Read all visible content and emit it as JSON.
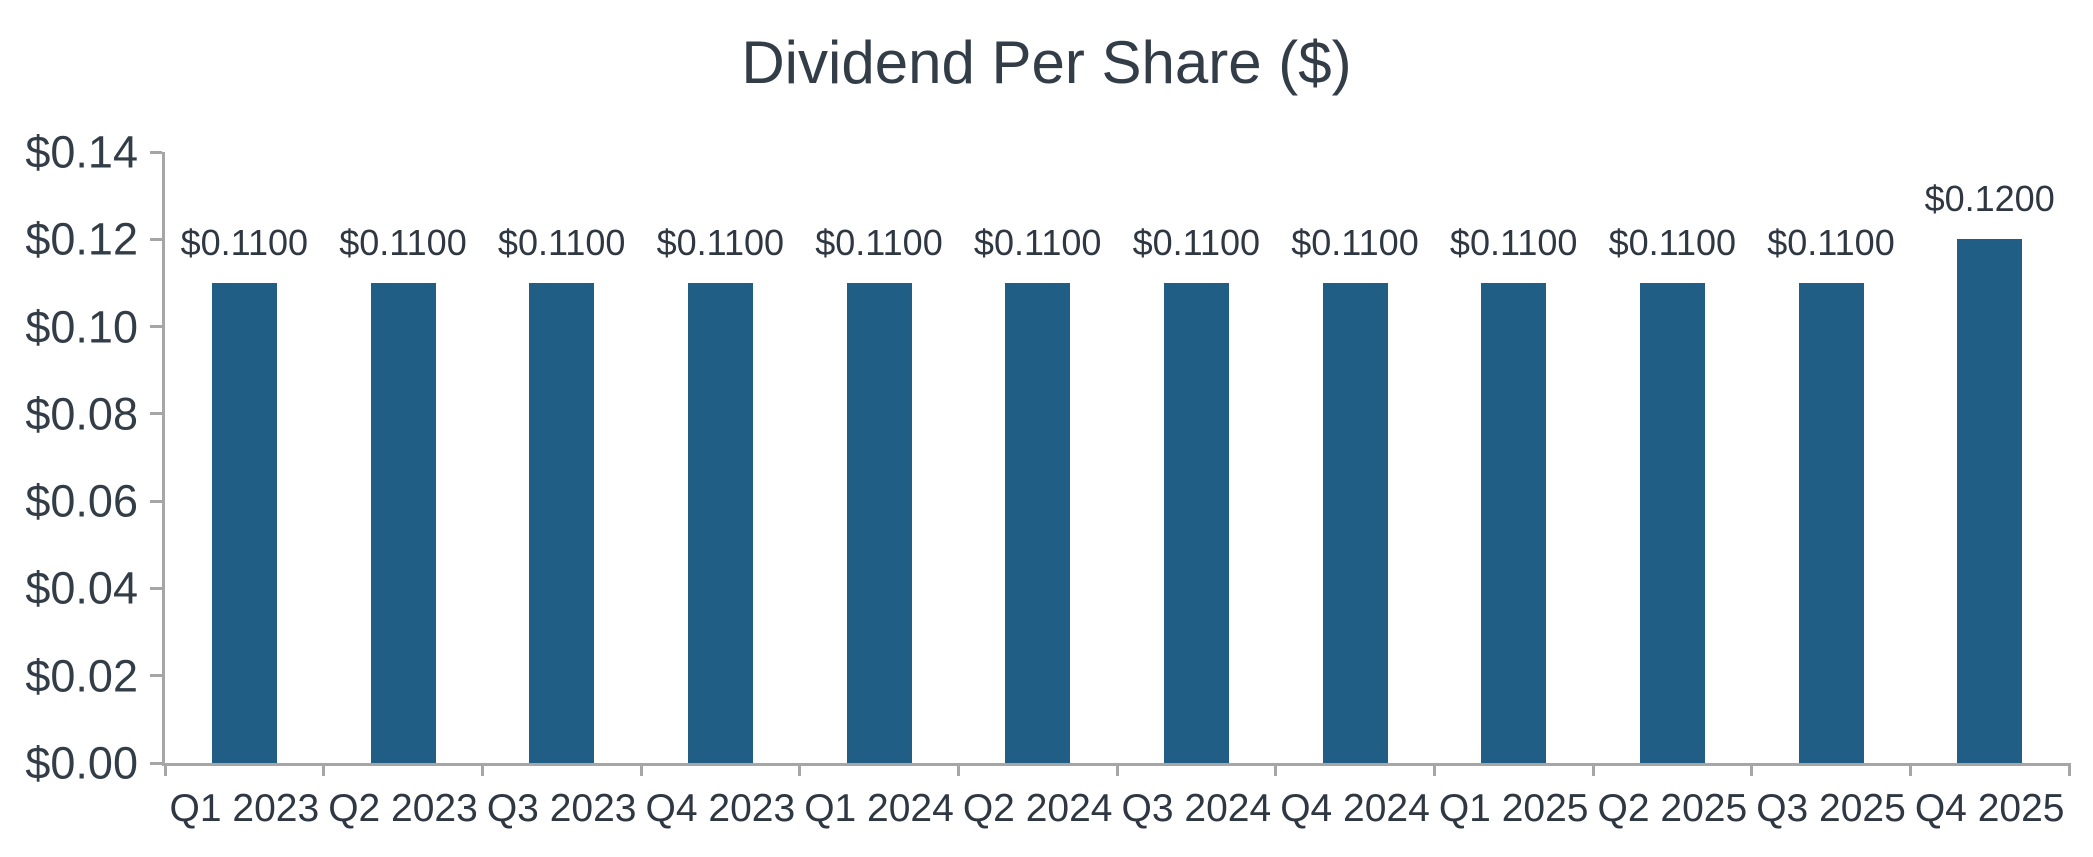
{
  "chart_data": {
    "type": "bar",
    "title": "Dividend Per Share ($)",
    "categories": [
      "Q1 2023",
      "Q2 2023",
      "Q3 2023",
      "Q4 2023",
      "Q1 2024",
      "Q2 2024",
      "Q3 2024",
      "Q4 2024",
      "Q1 2025",
      "Q2 2025",
      "Q3 2025",
      "Q4 2025"
    ],
    "values": [
      0.11,
      0.11,
      0.11,
      0.11,
      0.11,
      0.11,
      0.11,
      0.11,
      0.11,
      0.11,
      0.11,
      0.12
    ],
    "bar_labels": [
      "$0.1100",
      "$0.1100",
      "$0.1100",
      "$0.1100",
      "$0.1100",
      "$0.1100",
      "$0.1100",
      "$0.1100",
      "$0.1100",
      "$0.1100",
      "$0.1100",
      "$0.1200"
    ],
    "xlabel": "",
    "ylabel": "",
    "ylim": [
      0,
      0.14
    ],
    "y_ticks": [
      {
        "value": 0.0,
        "label": "$0.00"
      },
      {
        "value": 0.02,
        "label": "$0.02"
      },
      {
        "value": 0.04,
        "label": "$0.04"
      },
      {
        "value": 0.06,
        "label": "$0.06"
      },
      {
        "value": 0.08,
        "label": "$0.08"
      },
      {
        "value": 0.1,
        "label": "$0.10"
      },
      {
        "value": 0.12,
        "label": "$0.12"
      },
      {
        "value": 0.14,
        "label": "$0.14"
      }
    ],
    "grid": false,
    "legend_position": "none",
    "colors": {
      "bar": "#205e85",
      "axis": "#a6a6a6",
      "title_text": "#333d48",
      "label_text": "#2e3742",
      "background": "#ffffff"
    }
  }
}
